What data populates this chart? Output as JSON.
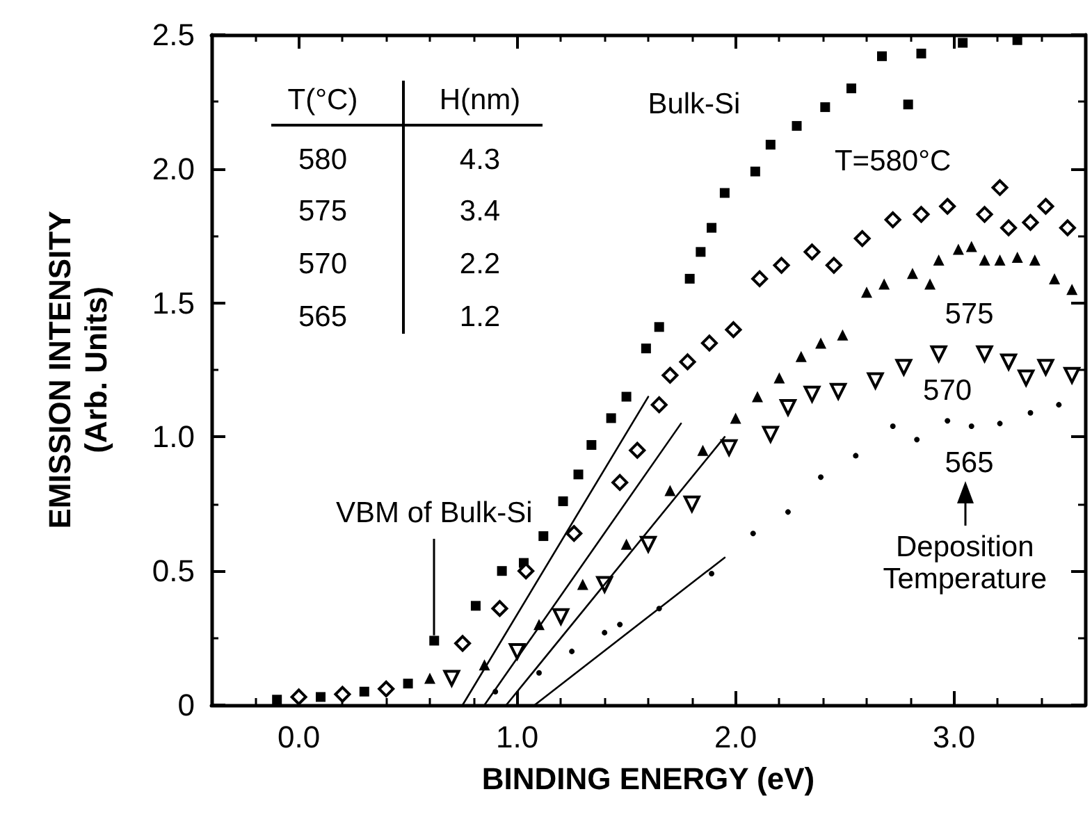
{
  "chart_data": {
    "type": "scatter",
    "xlabel": "BINDING ENERGY (eV)",
    "ylabel": "EMISSION INTENSITY\n(Arb. Units)",
    "xlim": [
      -0.4,
      3.6
    ],
    "ylim": [
      0,
      2.5
    ],
    "xticks": [
      {
        "value": -0.2,
        "label": null
      },
      {
        "value": 0,
        "label": "0.0"
      },
      {
        "value": 0.2,
        "label": null
      },
      {
        "value": 0.4,
        "label": null
      },
      {
        "value": 0.6,
        "label": null
      },
      {
        "value": 0.8,
        "label": null
      },
      {
        "value": 1,
        "label": "1.0"
      },
      {
        "value": 1.2,
        "label": null
      },
      {
        "value": 1.4,
        "label": null
      },
      {
        "value": 1.6,
        "label": null
      },
      {
        "value": 1.8,
        "label": null
      },
      {
        "value": 2,
        "label": "2.0"
      },
      {
        "value": 2.2,
        "label": null
      },
      {
        "value": 2.4,
        "label": null
      },
      {
        "value": 2.6,
        "label": null
      },
      {
        "value": 2.8,
        "label": null
      },
      {
        "value": 3,
        "label": "3.0"
      },
      {
        "value": 3.2,
        "label": null
      },
      {
        "value": 3.4,
        "label": null
      }
    ],
    "yticks": [
      0,
      {
        "value": 0.25,
        "label": null
      },
      0.5,
      {
        "value": 0.75,
        "label": null
      },
      {
        "value": 1,
        "label": "1.0"
      },
      {
        "value": 1.25,
        "label": null
      },
      1.5,
      {
        "value": 1.75,
        "label": null
      },
      {
        "value": 2,
        "label": "2.0"
      },
      {
        "value": 2.25,
        "label": null
      },
      2.5
    ],
    "grid": false,
    "legend": false,
    "series": [
      {
        "name": "Bulk-Si",
        "marker": "square",
        "color": "#000000",
        "x": [
          -0.1,
          0.1,
          0.3,
          0.5,
          0.62,
          0.81,
          0.93,
          1.03,
          1.12,
          1.21,
          1.28,
          1.34,
          1.43,
          1.5,
          1.59,
          1.65,
          1.79,
          1.84,
          1.89,
          1.95,
          2.09,
          2.16,
          2.28,
          2.41,
          2.53,
          2.67,
          2.79,
          2.85,
          3.04,
          3.29
        ],
        "values": [
          0.02,
          0.03,
          0.05,
          0.08,
          0.24,
          0.37,
          0.5,
          0.53,
          0.63,
          0.76,
          0.86,
          0.97,
          1.07,
          1.15,
          1.33,
          1.41,
          1.59,
          1.69,
          1.78,
          1.91,
          1.99,
          2.09,
          2.16,
          2.23,
          2.3,
          2.42,
          2.24,
          2.43,
          2.47,
          2.48
        ]
      },
      {
        "name": "T=580°C",
        "marker": "diamond",
        "color": "#000000",
        "x": [
          0.0,
          0.2,
          0.4,
          0.75,
          0.92,
          1.04,
          1.26,
          1.47,
          1.55,
          1.65,
          1.7,
          1.78,
          1.88,
          1.99,
          2.11,
          2.21,
          2.35,
          2.45,
          2.58,
          2.72,
          2.85,
          2.97,
          3.14,
          3.21,
          3.25,
          3.35,
          3.42,
          3.52
        ],
        "values": [
          0.03,
          0.04,
          0.06,
          0.23,
          0.36,
          0.5,
          0.64,
          0.83,
          0.95,
          1.12,
          1.23,
          1.28,
          1.35,
          1.4,
          1.59,
          1.64,
          1.69,
          1.64,
          1.74,
          1.81,
          1.83,
          1.86,
          1.83,
          1.93,
          1.78,
          1.8,
          1.86,
          1.78
        ]
      },
      {
        "name": "575",
        "marker": "triangle",
        "color": "#000000",
        "x": [
          0.6,
          0.85,
          1.1,
          1.3,
          1.5,
          1.7,
          1.85,
          2.0,
          2.1,
          2.2,
          2.3,
          2.39,
          2.49,
          2.6,
          2.68,
          2.81,
          2.89,
          2.93,
          3.02,
          3.08,
          3.14,
          3.21,
          3.29,
          3.37,
          3.46,
          3.54
        ],
        "values": [
          0.1,
          0.15,
          0.3,
          0.45,
          0.6,
          0.8,
          0.95,
          1.07,
          1.15,
          1.22,
          1.3,
          1.35,
          1.38,
          1.54,
          1.57,
          1.61,
          1.57,
          1.66,
          1.7,
          1.71,
          1.66,
          1.66,
          1.67,
          1.66,
          1.59,
          1.55
        ]
      },
      {
        "name": "570",
        "marker": "triangle-down",
        "color": "#000000",
        "x": [
          0.7,
          1.0,
          1.2,
          1.4,
          1.6,
          1.8,
          1.97,
          2.16,
          2.24,
          2.35,
          2.47,
          2.64,
          2.77,
          2.93,
          3.14,
          3.25,
          3.33,
          3.42,
          3.54
        ],
        "values": [
          0.1,
          0.2,
          0.33,
          0.45,
          0.6,
          0.75,
          0.96,
          1.01,
          1.11,
          1.16,
          1.17,
          1.21,
          1.26,
          1.31,
          1.31,
          1.28,
          1.22,
          1.26,
          1.23
        ]
      },
      {
        "name": "565",
        "marker": "circle",
        "color": "#000000",
        "x": [
          0.9,
          1.1,
          1.25,
          1.4,
          1.47,
          1.65,
          1.89,
          2.08,
          2.24,
          2.39,
          2.55,
          2.72,
          2.83,
          2.97,
          3.08,
          3.21,
          3.35,
          3.48
        ],
        "values": [
          0.05,
          0.12,
          0.2,
          0.27,
          0.3,
          0.36,
          0.49,
          0.64,
          0.72,
          0.85,
          0.93,
          1.04,
          0.99,
          1.06,
          1.04,
          1.05,
          1.09,
          1.12
        ]
      },
      {
        "type": "line",
        "marker": "none",
        "color": "#000000",
        "line_style": "solid",
        "x": [
          0.75,
          1.6
        ],
        "values": [
          0,
          1.15
        ]
      },
      {
        "type": "line",
        "marker": "none",
        "color": "#000000",
        "line_style": "solid",
        "x": [
          0.85,
          1.75
        ],
        "values": [
          0,
          1.05
        ]
      },
      {
        "type": "line",
        "marker": "none",
        "color": "#000000",
        "line_style": "solid",
        "x": [
          0.95,
          1.95
        ],
        "values": [
          0,
          1.0
        ]
      },
      {
        "type": "line",
        "marker": "none",
        "color": "#000000",
        "line_style": "solid",
        "x": [
          1.08,
          1.95
        ],
        "values": [
          0,
          0.55
        ]
      }
    ],
    "annotations": [
      "T(°C)",
      "H(nm)",
      "580",
      "4.3",
      "575",
      "3.4",
      "570",
      "2.2",
      "565",
      "1.2",
      {
        "text": "VBM of Bulk-Si",
        "x": 0.62,
        "y": 0.24
      },
      "Deposition Temperature"
    ]
  }
}
